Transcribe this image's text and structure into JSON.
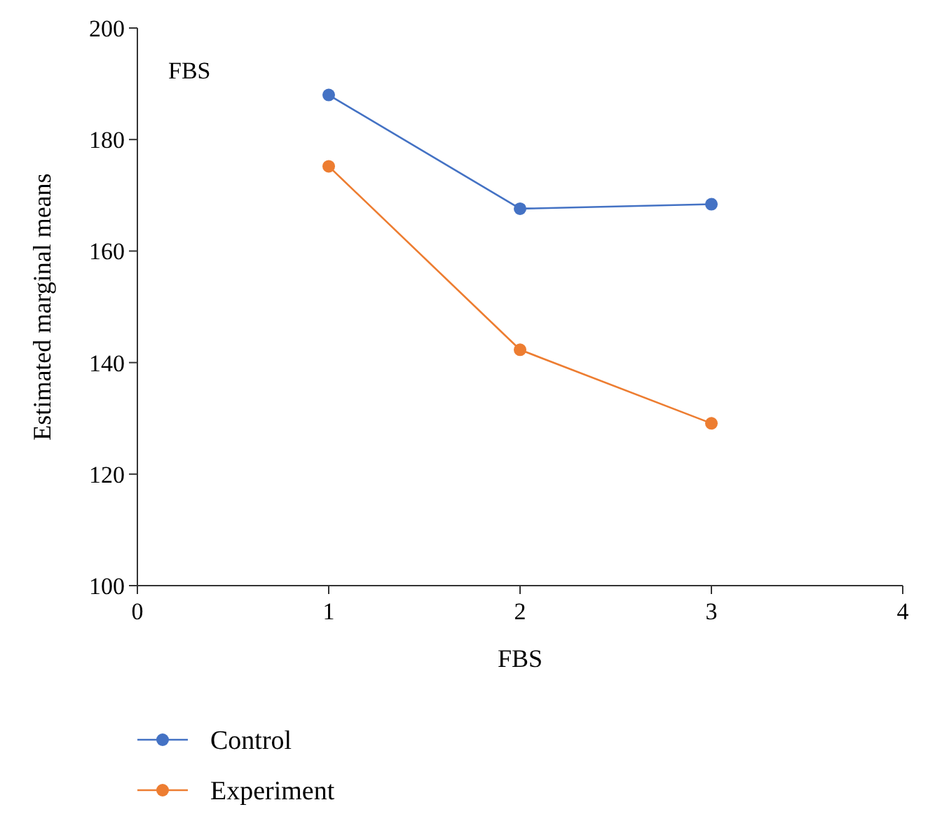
{
  "chart_data": {
    "type": "line",
    "xlabel": "FBS",
    "ylabel": "Estimated marginal means",
    "annotations": [
      "FBS"
    ],
    "x": [
      1,
      2,
      3
    ],
    "xlim": [
      0,
      4
    ],
    "xticks": [
      0,
      1,
      2,
      3,
      4
    ],
    "ylim": [
      100,
      200
    ],
    "yticks": [
      100,
      120,
      140,
      160,
      180,
      200
    ],
    "series": [
      {
        "name": "Control",
        "color": "#4472c4",
        "values": [
          188,
          167.6,
          168.4
        ]
      },
      {
        "name": "Experiment",
        "color": "#ed7d31",
        "values": [
          175.2,
          142.3,
          129.1
        ]
      }
    ],
    "marker": "circle",
    "legend": "bottom",
    "grid": false
  }
}
